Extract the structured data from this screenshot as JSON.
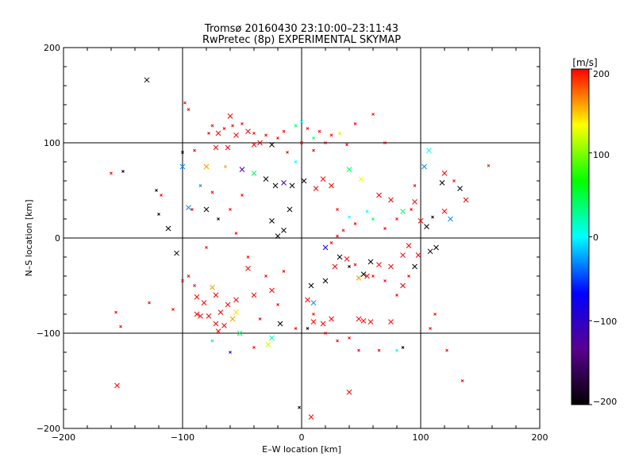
{
  "chart_data": {
    "type": "scatter",
    "title": "Tromsø 20160430 23:10:00–23:11:43",
    "subtitle": "RwPretec (8p) EXPERIMENTAL SKYMAP",
    "xlabel": "E–W location [km]",
    "ylabel": "N–S location [km]",
    "xlim": [
      -200,
      200
    ],
    "ylim": [
      -200,
      200
    ],
    "xticks": [
      "−200",
      "−100",
      "0",
      "100",
      "200"
    ],
    "yticks": [
      "−200",
      "−100",
      "0",
      "100",
      "200"
    ],
    "grid_lines": [
      -100,
      0,
      100
    ],
    "colorbar": {
      "label": "[m/s]",
      "range": [
        -200,
        200
      ],
      "ticks": [
        "200",
        "100",
        "0",
        "−100",
        "−200"
      ],
      "colors": [
        "#000000",
        "#5a0090",
        "#0000ff",
        "#00ffff",
        "#00ff00",
        "#ffff00",
        "#ff0000"
      ]
    },
    "marker_legend": "x = large marker, + = small marker",
    "points": [
      {
        "x": -130,
        "y": 166,
        "v": -200,
        "m": "x"
      },
      {
        "x": -155,
        "y": -155,
        "v": 200,
        "m": "x"
      },
      {
        "x": -112,
        "y": 10,
        "v": -200,
        "m": "x"
      },
      {
        "x": -105,
        "y": -16,
        "v": -200,
        "m": "x"
      },
      {
        "x": -95,
        "y": 32,
        "v": -30,
        "m": "x"
      },
      {
        "x": -80,
        "y": 30,
        "v": -200,
        "m": "x"
      },
      {
        "x": -60,
        "y": 128,
        "v": 200,
        "m": "x"
      },
      {
        "x": -70,
        "y": 110,
        "v": 200,
        "m": "x"
      },
      {
        "x": -55,
        "y": 108,
        "v": 200,
        "m": "x"
      },
      {
        "x": -45,
        "y": 112,
        "v": 200,
        "m": "x"
      },
      {
        "x": -35,
        "y": 100,
        "v": 200,
        "m": "x"
      },
      {
        "x": -25,
        "y": 98,
        "v": -200,
        "m": "x"
      },
      {
        "x": -72,
        "y": 95,
        "v": 200,
        "m": "x"
      },
      {
        "x": -62,
        "y": 95,
        "v": 200,
        "m": "x"
      },
      {
        "x": -40,
        "y": 98,
        "v": 200,
        "m": "x"
      },
      {
        "x": -80,
        "y": 75,
        "v": 160,
        "m": "x"
      },
      {
        "x": -100,
        "y": 75,
        "v": -30,
        "m": "x"
      },
      {
        "x": -50,
        "y": 72,
        "v": -120,
        "m": "x"
      },
      {
        "x": -40,
        "y": 68,
        "v": 40,
        "m": "x"
      },
      {
        "x": -30,
        "y": 62,
        "v": -200,
        "m": "x"
      },
      {
        "x": -22,
        "y": 55,
        "v": -200,
        "m": "x"
      },
      {
        "x": -15,
        "y": 58,
        "v": -120,
        "m": "x"
      },
      {
        "x": -8,
        "y": 55,
        "v": -200,
        "m": "x"
      },
      {
        "x": 2,
        "y": 60,
        "v": -200,
        "m": "x"
      },
      {
        "x": 12,
        "y": 52,
        "v": 200,
        "m": "x"
      },
      {
        "x": 18,
        "y": 62,
        "v": 200,
        "m": "x"
      },
      {
        "x": 25,
        "y": 55,
        "v": 200,
        "m": "x"
      },
      {
        "x": 40,
        "y": 72,
        "v": 40,
        "m": "x"
      },
      {
        "x": 50,
        "y": 62,
        "v": 130,
        "m": "x"
      },
      {
        "x": 65,
        "y": 45,
        "v": 200,
        "m": "x"
      },
      {
        "x": 75,
        "y": 40,
        "v": 200,
        "m": "x"
      },
      {
        "x": 85,
        "y": 28,
        "v": 40,
        "m": "x"
      },
      {
        "x": 100,
        "y": 18,
        "v": 200,
        "m": "x"
      },
      {
        "x": 105,
        "y": 12,
        "v": -200,
        "m": "x"
      },
      {
        "x": 107,
        "y": 92,
        "v": 0,
        "m": "x"
      },
      {
        "x": 103,
        "y": 75,
        "v": -30,
        "m": "x"
      },
      {
        "x": 120,
        "y": 68,
        "v": 200,
        "m": "x"
      },
      {
        "x": 118,
        "y": 58,
        "v": -200,
        "m": "x"
      },
      {
        "x": 133,
        "y": 52,
        "v": -200,
        "m": "x"
      },
      {
        "x": 138,
        "y": 40,
        "v": 200,
        "m": "x"
      },
      {
        "x": 125,
        "y": 20,
        "v": -30,
        "m": "x"
      },
      {
        "x": 120,
        "y": 28,
        "v": 200,
        "m": "x"
      },
      {
        "x": 113,
        "y": -10,
        "v": -200,
        "m": "x"
      },
      {
        "x": 108,
        "y": -14,
        "v": -200,
        "m": "x"
      },
      {
        "x": 95,
        "y": 38,
        "v": 200,
        "m": "x"
      },
      {
        "x": 98,
        "y": -18,
        "v": 200,
        "m": "x"
      },
      {
        "x": 95,
        "y": -30,
        "v": -200,
        "m": "x"
      },
      {
        "x": 90,
        "y": -8,
        "v": 200,
        "m": "x"
      },
      {
        "x": 85,
        "y": -18,
        "v": 200,
        "m": "x"
      },
      {
        "x": 75,
        "y": -30,
        "v": 200,
        "m": "x"
      },
      {
        "x": 85,
        "y": -50,
        "v": 200,
        "m": "x"
      },
      {
        "x": 65,
        "y": -28,
        "v": 200,
        "m": "x"
      },
      {
        "x": 55,
        "y": -40,
        "v": 200,
        "m": "x"
      },
      {
        "x": 48,
        "y": -42,
        "v": 160,
        "m": "x"
      },
      {
        "x": 52,
        "y": -38,
        "v": -200,
        "m": "x"
      },
      {
        "x": 38,
        "y": -22,
        "v": 200,
        "m": "x"
      },
      {
        "x": 58,
        "y": -25,
        "v": -200,
        "m": "x"
      },
      {
        "x": 32,
        "y": -20,
        "v": -200,
        "m": "x"
      },
      {
        "x": 20,
        "y": -10,
        "v": -80,
        "m": "x"
      },
      {
        "x": 28,
        "y": -30,
        "v": 200,
        "m": "x"
      },
      {
        "x": 20,
        "y": -45,
        "v": -200,
        "m": "x"
      },
      {
        "x": 8,
        "y": -50,
        "v": -200,
        "m": "x"
      },
      {
        "x": 5,
        "y": -65,
        "v": 200,
        "m": "x"
      },
      {
        "x": 10,
        "y": -88,
        "v": 200,
        "m": "x"
      },
      {
        "x": 18,
        "y": -90,
        "v": 200,
        "m": "x"
      },
      {
        "x": 25,
        "y": -85,
        "v": 200,
        "m": "x"
      },
      {
        "x": 48,
        "y": -85,
        "v": 200,
        "m": "x"
      },
      {
        "x": 52,
        "y": -87,
        "v": 200,
        "m": "x"
      },
      {
        "x": 58,
        "y": -88,
        "v": 200,
        "m": "x"
      },
      {
        "x": 75,
        "y": -88,
        "v": 200,
        "m": "x"
      },
      {
        "x": 10,
        "y": -68,
        "v": -30,
        "m": "x"
      },
      {
        "x": 40,
        "y": -162,
        "v": 200,
        "m": "x"
      },
      {
        "x": 8,
        "y": -188,
        "v": 200,
        "m": "x"
      },
      {
        "x": -18,
        "y": -90,
        "v": -200,
        "m": "x"
      },
      {
        "x": -25,
        "y": -55,
        "v": 200,
        "m": "x"
      },
      {
        "x": -40,
        "y": -60,
        "v": 200,
        "m": "x"
      },
      {
        "x": -45,
        "y": -32,
        "v": 200,
        "m": "x"
      },
      {
        "x": -25,
        "y": -105,
        "v": 20,
        "m": "x"
      },
      {
        "x": -28,
        "y": -112,
        "v": 120,
        "m": "x"
      },
      {
        "x": -52,
        "y": -100,
        "v": 40,
        "m": "x"
      },
      {
        "x": -88,
        "y": -62,
        "v": 200,
        "m": "x"
      },
      {
        "x": -82,
        "y": -68,
        "v": 200,
        "m": "x"
      },
      {
        "x": -72,
        "y": -60,
        "v": 200,
        "m": "x"
      },
      {
        "x": -75,
        "y": -52,
        "v": 160,
        "m": "x"
      },
      {
        "x": -88,
        "y": -80,
        "v": 200,
        "m": "x"
      },
      {
        "x": -85,
        "y": -82,
        "v": 200,
        "m": "x"
      },
      {
        "x": -78,
        "y": -82,
        "v": 200,
        "m": "x"
      },
      {
        "x": -72,
        "y": -90,
        "v": 200,
        "m": "x"
      },
      {
        "x": -65,
        "y": -92,
        "v": 200,
        "m": "x"
      },
      {
        "x": -62,
        "y": -70,
        "v": 200,
        "m": "x"
      },
      {
        "x": -55,
        "y": -65,
        "v": 200,
        "m": "x"
      },
      {
        "x": -55,
        "y": -78,
        "v": 140,
        "m": "x"
      },
      {
        "x": -58,
        "y": -85,
        "v": 160,
        "m": "x"
      },
      {
        "x": -68,
        "y": -78,
        "v": 200,
        "m": "x"
      },
      {
        "x": -70,
        "y": -98,
        "v": 200,
        "m": "x"
      },
      {
        "x": -20,
        "y": 2,
        "v": -200,
        "m": "x"
      },
      {
        "x": -15,
        "y": 8,
        "v": -200,
        "m": "x"
      },
      {
        "x": -10,
        "y": 30,
        "v": -200,
        "m": "x"
      },
      {
        "x": -25,
        "y": 18,
        "v": -200,
        "m": "x"
      },
      {
        "x": -150,
        "y": 70,
        "v": -200,
        "m": "+"
      },
      {
        "x": -160,
        "y": 68,
        "v": 200,
        "m": "+"
      },
      {
        "x": -122,
        "y": 50,
        "v": -200,
        "m": "+"
      },
      {
        "x": -118,
        "y": 45,
        "v": 200,
        "m": "+"
      },
      {
        "x": -120,
        "y": 25,
        "v": -200,
        "m": "+"
      },
      {
        "x": -98,
        "y": 142,
        "v": 200,
        "m": "+"
      },
      {
        "x": -95,
        "y": 135,
        "v": 200,
        "m": "+"
      },
      {
        "x": -100,
        "y": 90,
        "v": -200,
        "m": "+"
      },
      {
        "x": -90,
        "y": 92,
        "v": 200,
        "m": "+"
      },
      {
        "x": -78,
        "y": 110,
        "v": 200,
        "m": "+"
      },
      {
        "x": -75,
        "y": 118,
        "v": 200,
        "m": "+"
      },
      {
        "x": -65,
        "y": 115,
        "v": 200,
        "m": "+"
      },
      {
        "x": -58,
        "y": 118,
        "v": 200,
        "m": "+"
      },
      {
        "x": -50,
        "y": 120,
        "v": 200,
        "m": "+"
      },
      {
        "x": -40,
        "y": 110,
        "v": 200,
        "m": "+"
      },
      {
        "x": -30,
        "y": 108,
        "v": 200,
        "m": "+"
      },
      {
        "x": -20,
        "y": 105,
        "v": 200,
        "m": "+"
      },
      {
        "x": -15,
        "y": 112,
        "v": 200,
        "m": "+"
      },
      {
        "x": -5,
        "y": 118,
        "v": 40,
        "m": "+"
      },
      {
        "x": 0,
        "y": 122,
        "v": 0,
        "m": "+"
      },
      {
        "x": 5,
        "y": 115,
        "v": 200,
        "m": "+"
      },
      {
        "x": 10,
        "y": 105,
        "v": 40,
        "m": "+"
      },
      {
        "x": 15,
        "y": 112,
        "v": 200,
        "m": "+"
      },
      {
        "x": 20,
        "y": 100,
        "v": 200,
        "m": "+"
      },
      {
        "x": 25,
        "y": 108,
        "v": 200,
        "m": "+"
      },
      {
        "x": 32,
        "y": 110,
        "v": 120,
        "m": "+"
      },
      {
        "x": 38,
        "y": 98,
        "v": 200,
        "m": "+"
      },
      {
        "x": 45,
        "y": 120,
        "v": 200,
        "m": "+"
      },
      {
        "x": 60,
        "y": 130,
        "v": 200,
        "m": "+"
      },
      {
        "x": 70,
        "y": 100,
        "v": 200,
        "m": "+"
      },
      {
        "x": 95,
        "y": 55,
        "v": 200,
        "m": "+"
      },
      {
        "x": 92,
        "y": 30,
        "v": 200,
        "m": "+"
      },
      {
        "x": 110,
        "y": 22,
        "v": -200,
        "m": "+"
      },
      {
        "x": 128,
        "y": 60,
        "v": 200,
        "m": "+"
      },
      {
        "x": 157,
        "y": 76,
        "v": 200,
        "m": "+"
      },
      {
        "x": 80,
        "y": 20,
        "v": 200,
        "m": "+"
      },
      {
        "x": 70,
        "y": 10,
        "v": 200,
        "m": "+"
      },
      {
        "x": 60,
        "y": 20,
        "v": 40,
        "m": "+"
      },
      {
        "x": 55,
        "y": 28,
        "v": 0,
        "m": "+"
      },
      {
        "x": 45,
        "y": 15,
        "v": 200,
        "m": "+"
      },
      {
        "x": 40,
        "y": 22,
        "v": 0,
        "m": "+"
      },
      {
        "x": 30,
        "y": 30,
        "v": 200,
        "m": "+"
      },
      {
        "x": 35,
        "y": 8,
        "v": 200,
        "m": "+"
      },
      {
        "x": 30,
        "y": 2,
        "v": 200,
        "m": "+"
      },
      {
        "x": 25,
        "y": -5,
        "v": 200,
        "m": "+"
      },
      {
        "x": 40,
        "y": -30,
        "v": -200,
        "m": "+"
      },
      {
        "x": 45,
        "y": -28,
        "v": 200,
        "m": "+"
      },
      {
        "x": 60,
        "y": -40,
        "v": 200,
        "m": "+"
      },
      {
        "x": 70,
        "y": -45,
        "v": 200,
        "m": "+"
      },
      {
        "x": 80,
        "y": -60,
        "v": 200,
        "m": "+"
      },
      {
        "x": 90,
        "y": -40,
        "v": 200,
        "m": "+"
      },
      {
        "x": 85,
        "y": -115,
        "v": -200,
        "m": "+"
      },
      {
        "x": 80,
        "y": -118,
        "v": 0,
        "m": "+"
      },
      {
        "x": 65,
        "y": -118,
        "v": 200,
        "m": "+"
      },
      {
        "x": 48,
        "y": -118,
        "v": 200,
        "m": "+"
      },
      {
        "x": 40,
        "y": -105,
        "v": 200,
        "m": "+"
      },
      {
        "x": 30,
        "y": -108,
        "v": 200,
        "m": "+"
      },
      {
        "x": 20,
        "y": -100,
        "v": 200,
        "m": "+"
      },
      {
        "x": 10,
        "y": -80,
        "v": 200,
        "m": "+"
      },
      {
        "x": 5,
        "y": -95,
        "v": -200,
        "m": "+"
      },
      {
        "x": -5,
        "y": -95,
        "v": 200,
        "m": "+"
      },
      {
        "x": -2,
        "y": -178,
        "v": -200,
        "m": "+"
      },
      {
        "x": 122,
        "y": -118,
        "v": 200,
        "m": "+"
      },
      {
        "x": 135,
        "y": -150,
        "v": 200,
        "m": "+"
      },
      {
        "x": 108,
        "y": -95,
        "v": 200,
        "m": "+"
      },
      {
        "x": 112,
        "y": -80,
        "v": 200,
        "m": "+"
      },
      {
        "x": -20,
        "y": -70,
        "v": 200,
        "m": "+"
      },
      {
        "x": -35,
        "y": -85,
        "v": 200,
        "m": "+"
      },
      {
        "x": -40,
        "y": -115,
        "v": 200,
        "m": "+"
      },
      {
        "x": -60,
        "y": -120,
        "v": -100,
        "m": "+"
      },
      {
        "x": -75,
        "y": -108,
        "v": 40,
        "m": "+"
      },
      {
        "x": -90,
        "y": -50,
        "v": 200,
        "m": "+"
      },
      {
        "x": -95,
        "y": -40,
        "v": 200,
        "m": "+"
      },
      {
        "x": -100,
        "y": -45,
        "v": 200,
        "m": "+"
      },
      {
        "x": -108,
        "y": -75,
        "v": 200,
        "m": "+"
      },
      {
        "x": -128,
        "y": -68,
        "v": 200,
        "m": "+"
      },
      {
        "x": -156,
        "y": -78,
        "v": 200,
        "m": "+"
      },
      {
        "x": -152,
        "y": -93,
        "v": 200,
        "m": "+"
      },
      {
        "x": -80,
        "y": -10,
        "v": 200,
        "m": "+"
      },
      {
        "x": -70,
        "y": 20,
        "v": -200,
        "m": "+"
      },
      {
        "x": -60,
        "y": 30,
        "v": 200,
        "m": "+"
      },
      {
        "x": -55,
        "y": 5,
        "v": 200,
        "m": "+"
      },
      {
        "x": -45,
        "y": -20,
        "v": 200,
        "m": "+"
      },
      {
        "x": -30,
        "y": -40,
        "v": 200,
        "m": "+"
      },
      {
        "x": -15,
        "y": -35,
        "v": 200,
        "m": "+"
      },
      {
        "x": -50,
        "y": 45,
        "v": 200,
        "m": "+"
      },
      {
        "x": -75,
        "y": 48,
        "v": 200,
        "m": "+"
      },
      {
        "x": -85,
        "y": 55,
        "v": -30,
        "m": "+"
      },
      {
        "x": -92,
        "y": 30,
        "v": 200,
        "m": "+"
      },
      {
        "x": -64,
        "y": 75,
        "v": 160,
        "m": "+"
      },
      {
        "x": 0,
        "y": 100,
        "v": 200,
        "m": "+"
      },
      {
        "x": 10,
        "y": 92,
        "v": 200,
        "m": "+"
      },
      {
        "x": -12,
        "y": 90,
        "v": 200,
        "m": "+"
      },
      {
        "x": -5,
        "y": 80,
        "v": 0,
        "m": "+"
      }
    ]
  }
}
